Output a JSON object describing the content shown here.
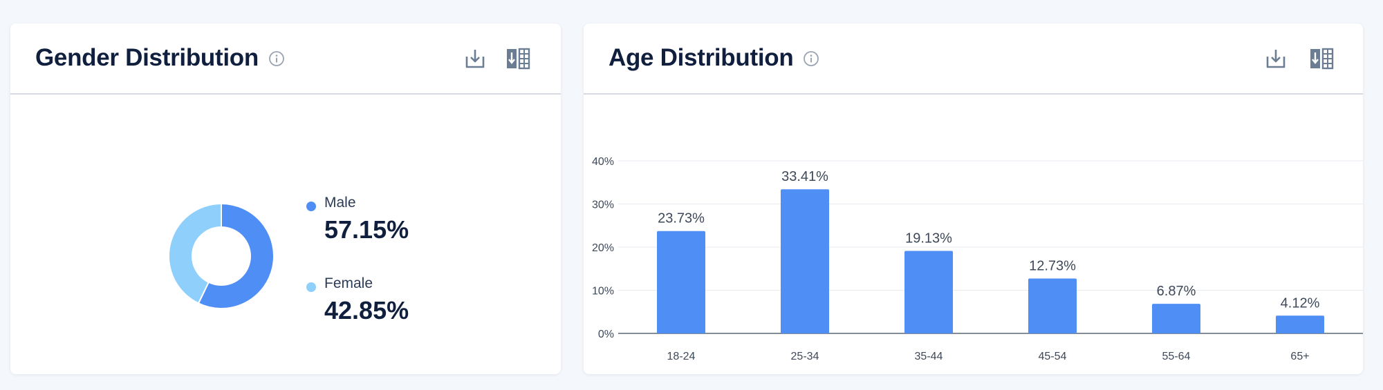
{
  "cards": {
    "gender": {
      "title": "Gender Distribution"
    },
    "age": {
      "title": "Age Distribution"
    }
  },
  "icons": {
    "info": "info-icon",
    "download": "download-icon",
    "export": "export-table-icon"
  },
  "colors": {
    "male": "#4f8ef5",
    "female": "#8ecffc",
    "bar": "#4f8ef5"
  },
  "legend": [
    {
      "label": "Male",
      "value": "57.15%"
    },
    {
      "label": "Female",
      "value": "42.85%"
    }
  ],
  "chart_data": [
    {
      "type": "pie",
      "donut": true,
      "title": "Gender Distribution",
      "categories": [
        "Male",
        "Female"
      ],
      "values": [
        57.15,
        42.85
      ],
      "unit": "%"
    },
    {
      "type": "bar",
      "title": "Age Distribution",
      "categories": [
        "18-24",
        "25-34",
        "35-44",
        "45-54",
        "55-64",
        "65+"
      ],
      "values": [
        23.73,
        33.41,
        19.13,
        12.73,
        6.87,
        4.12
      ],
      "data_labels": [
        "23.73%",
        "33.41%",
        "19.13%",
        "12.73%",
        "6.87%",
        "4.12%"
      ],
      "y_ticks": [
        "0%",
        "10%",
        "20%",
        "30%",
        "40%"
      ],
      "ylim": [
        0,
        40
      ],
      "xlabel": "",
      "ylabel": "",
      "grid": true,
      "legend": "none"
    }
  ]
}
